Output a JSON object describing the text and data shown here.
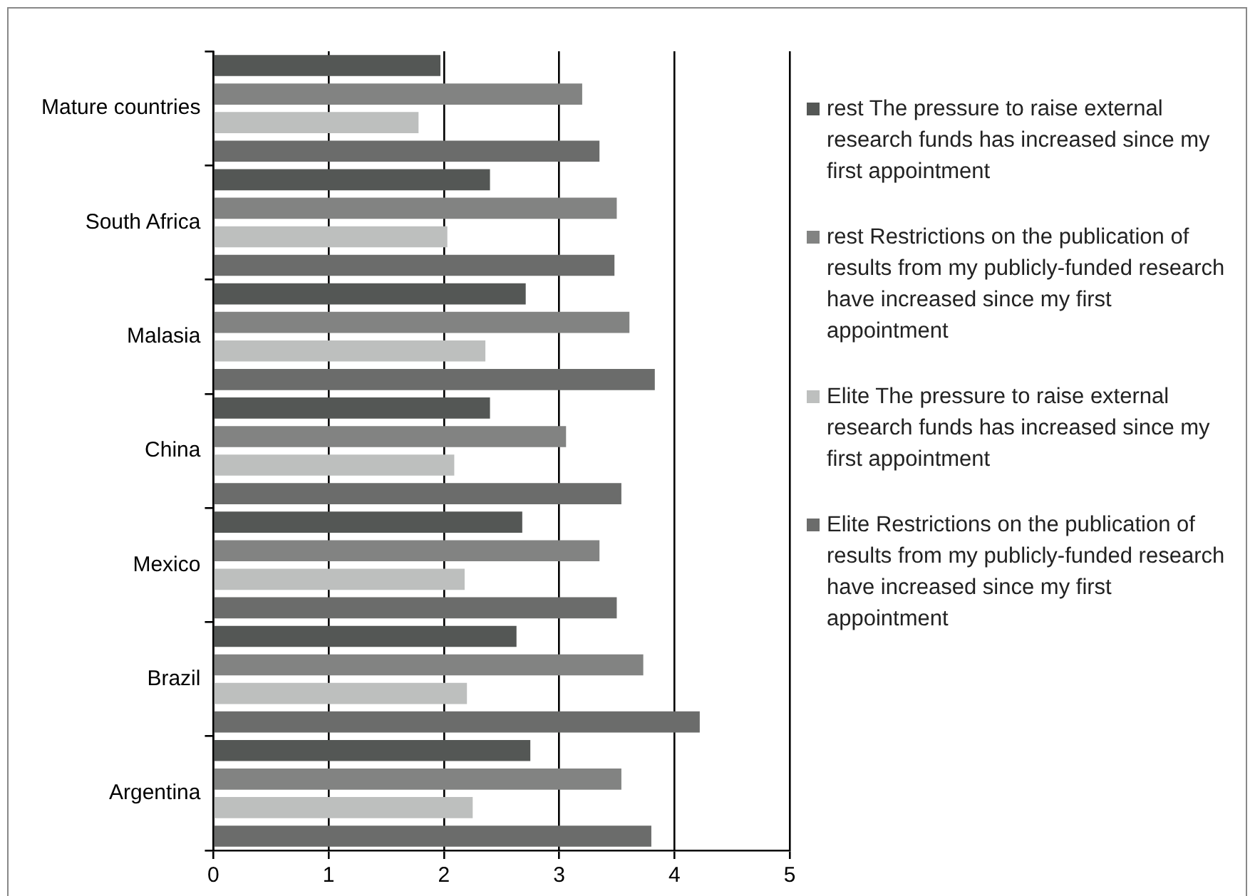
{
  "chart_data": {
    "type": "bar",
    "orientation": "horizontal",
    "categories": [
      "Mature countries",
      "South Africa",
      "Malasia",
      "China",
      "Mexico",
      "Brazil",
      "Argentina"
    ],
    "series": [
      {
        "name": "rest The pressure to raise external research funds has increased since my first appointment",
        "color": "#545755",
        "values": [
          1.97,
          2.4,
          2.71,
          2.4,
          2.68,
          2.63,
          2.75
        ]
      },
      {
        "name": "rest Restrictions on the publication of results from my publicly-funded research have increased since my first appointment",
        "color": "#828382",
        "values": [
          3.2,
          3.5,
          3.61,
          3.06,
          3.35,
          3.73,
          3.54
        ]
      },
      {
        "name": "Elite The pressure to raise external research funds has increased since my first appointment",
        "color": "#bdbfbe",
        "values": [
          1.78,
          2.03,
          2.36,
          2.09,
          2.18,
          2.2,
          2.25
        ]
      },
      {
        "name": "Elite Restrictions on the publication of results from my publicly-funded research have increased since my first appointment",
        "color": "#6b6c6b",
        "values": [
          3.35,
          3.48,
          3.83,
          3.54,
          3.5,
          4.22,
          3.8
        ]
      }
    ],
    "xlim": [
      0,
      5
    ],
    "xticks": [
      0,
      1,
      2,
      3,
      4,
      5
    ],
    "grid": "x",
    "legend": "right"
  }
}
